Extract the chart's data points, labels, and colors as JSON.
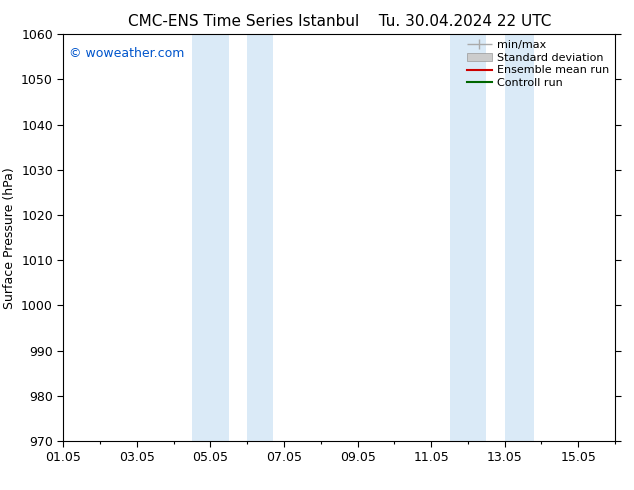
{
  "title": "CMC-ENS Time Series Istanbul",
  "title_right": "Tu. 30.04.2024 22 UTC",
  "ylabel": "Surface Pressure (hPa)",
  "ylim": [
    970,
    1060
  ],
  "yticks": [
    970,
    980,
    990,
    1000,
    1010,
    1020,
    1030,
    1040,
    1050,
    1060
  ],
  "xlim_start": 0,
  "xlim_end": 15,
  "xtick_positions": [
    0,
    2,
    4,
    6,
    8,
    10,
    12,
    14
  ],
  "xtick_labels": [
    "01.05",
    "03.05",
    "05.05",
    "07.05",
    "09.05",
    "11.05",
    "13.05",
    "15.05"
  ],
  "shade_bands": [
    {
      "xmin": 3.5,
      "xmax": 4.5
    },
    {
      "xmin": 5.0,
      "xmax": 5.7
    },
    {
      "xmin": 10.5,
      "xmax": 11.5
    },
    {
      "xmin": 12.0,
      "xmax": 12.8
    }
  ],
  "shade_color": "#daeaf7",
  "background_color": "#ffffff",
  "copyright_text": "© woweather.com",
  "copyright_color": "#0055cc",
  "legend_entries": [
    {
      "label": "min/max",
      "color": "#aaaaaa",
      "type": "minmax"
    },
    {
      "label": "Standard deviation",
      "color": "#cccccc",
      "type": "band"
    },
    {
      "label": "Ensemble mean run",
      "color": "#cc0000",
      "type": "line"
    },
    {
      "label": "Controll run",
      "color": "#006600",
      "type": "line"
    }
  ],
  "font_family": "DejaVu Sans",
  "font_size": 9,
  "tick_font_size": 9,
  "title_font_size": 11,
  "ylabel_font_size": 9,
  "legend_font_size": 8,
  "copyright_font_size": 9
}
